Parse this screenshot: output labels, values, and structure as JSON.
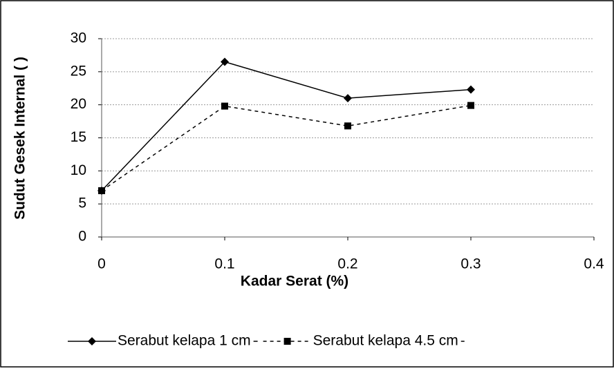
{
  "chart_data": {
    "type": "line",
    "x_label": "Kadar Serat (%)",
    "y_label": "Sudut Gesek Internal ( )",
    "x": [
      0,
      0.1,
      0.2,
      0.3
    ],
    "series": [
      {
        "name": "Serabut kelapa 1 cm",
        "color": "#000000",
        "marker": "diamond",
        "line_style": "solid",
        "values": [
          7,
          26.5,
          21,
          22.3
        ]
      },
      {
        "name": "Serabut kelapa 4.5 cm",
        "color": "#000000",
        "marker": "square",
        "line_style": "dashed",
        "values": [
          7,
          19.8,
          16.8,
          19.9
        ]
      }
    ],
    "xlim": [
      0,
      0.4
    ],
    "xticks": [
      0,
      0.1,
      0.2,
      0.3,
      0.4
    ],
    "ylim": [
      0,
      30
    ],
    "yticks": [
      0,
      5,
      10,
      15,
      20,
      25,
      30
    ],
    "grid": true,
    "legend": "bottom"
  }
}
